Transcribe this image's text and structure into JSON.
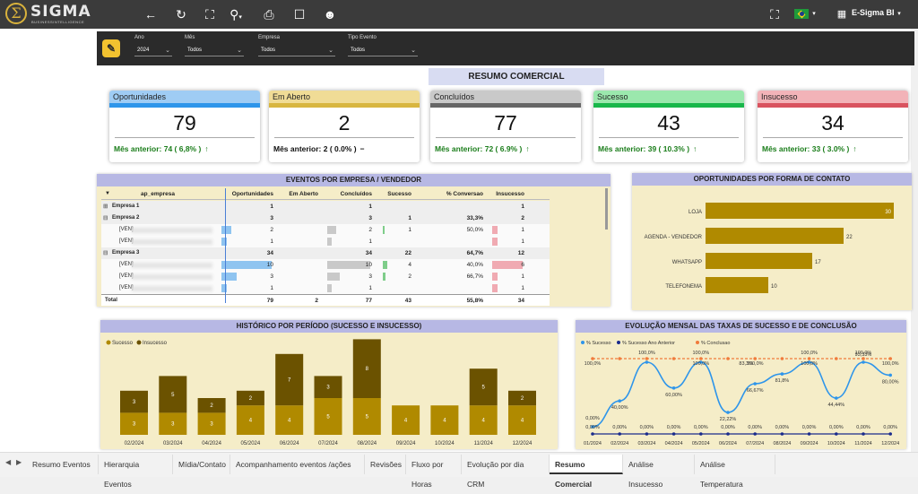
{
  "app": {
    "brand": "SIGMA",
    "brand_sub": "BUSINESSINTELLIGENCE",
    "logo_glyph": "Σ",
    "user": "E-Sigma BI"
  },
  "toolbar": {
    "icons": [
      "back-icon",
      "refresh-icon",
      "fullscreen-icon",
      "zoom-icon",
      "print-icon",
      "bookmark-icon",
      "user-help-icon"
    ],
    "right_icons": [
      "expand-icon"
    ]
  },
  "filters": [
    {
      "label": "Ano",
      "value": "2024"
    },
    {
      "label": "Mês",
      "value": "Todos"
    },
    {
      "label": "Empresa",
      "value": "Todos"
    },
    {
      "label": "Tipo Evento",
      "value": "Todos"
    }
  ],
  "resumo_title": "RESUMO COMERCIAL",
  "kpis": [
    {
      "title": "Oportunidades",
      "value": "79",
      "footer": "Mês anterior: 74 ( 6,8% )",
      "trend": "↑",
      "head": "#9fccf4",
      "bar": "#2e95ea",
      "trend_color": "#1a7d1a"
    },
    {
      "title": "Em Aberto",
      "value": "2",
      "footer": "Mês anterior: 2 ( 0.0% )",
      "trend": "−",
      "head": "#f0dc96",
      "bar": "#d8b640",
      "trend_color": "#111"
    },
    {
      "title": "Concluídos",
      "value": "77",
      "footer": "Mês anterior: 72 ( 6.9% )",
      "trend": "↑",
      "head": "#c9c9c9",
      "bar": "#666666",
      "trend_color": "#1a7d1a"
    },
    {
      "title": "Sucesso",
      "value": "43",
      "footer": "Mês anterior: 39 ( 10.3% )",
      "trend": "↑",
      "head": "#9be8ad",
      "bar": "#18b74a",
      "trend_color": "#1a7d1a"
    },
    {
      "title": "Insucesso",
      "value": "34",
      "footer": "Mês anterior: 33 ( 3.0% )",
      "trend": "↑",
      "head": "#f2b3b8",
      "bar": "#d9535f",
      "trend_color": "#1a7d1a"
    }
  ],
  "eventos": {
    "title": "EVENTOS POR EMPRESA / VENDEDOR",
    "columns": [
      "ap_empresa",
      "Oportunidades",
      "Em Aberto",
      "Concluídos",
      "Sucesso",
      "% Conversao",
      "Insucesso"
    ],
    "rows": [
      {
        "label": "Empresa 1",
        "level": 0,
        "expander": "⊞",
        "op": "1",
        "ab": "",
        "co": "1",
        "su": "",
        "pc": "",
        "in": "1",
        "bold": true,
        "op_v": 1,
        "co_v": 1,
        "su_v": 0,
        "in_v": 1
      },
      {
        "label": "Empresa 2",
        "level": 0,
        "expander": "⊟",
        "op": "3",
        "ab": "",
        "co": "3",
        "su": "1",
        "pc": "33,3%",
        "in": "2",
        "bold": true,
        "op_v": 3,
        "co_v": 3,
        "su_v": 1,
        "in_v": 2
      },
      {
        "label": "[VEN]",
        "level": 1,
        "expander": "",
        "op": "2",
        "ab": "",
        "co": "2",
        "su": "1",
        "pc": "50,0%",
        "in": "1",
        "bold": false,
        "bars": true,
        "op_v": 2,
        "co_v": 2,
        "su_v": 1,
        "in_v": 1
      },
      {
        "label": "[VEN]",
        "level": 1,
        "expander": "",
        "op": "1",
        "ab": "",
        "co": "1",
        "su": "",
        "pc": "",
        "in": "1",
        "bold": false,
        "bars": true,
        "op_v": 1,
        "co_v": 1,
        "su_v": 0,
        "in_v": 1
      },
      {
        "label": "Empresa 3",
        "level": 0,
        "expander": "⊟",
        "op": "34",
        "ab": "",
        "co": "34",
        "su": "22",
        "pc": "64,7%",
        "in": "12",
        "bold": true,
        "op_v": 34,
        "co_v": 34,
        "su_v": 22,
        "in_v": 12
      },
      {
        "label": "[VEN]",
        "level": 1,
        "expander": "",
        "op": "10",
        "ab": "",
        "co": "10",
        "su": "4",
        "pc": "40,0%",
        "in": "6",
        "bold": false,
        "bars": true,
        "op_v": 10,
        "co_v": 10,
        "su_v": 4,
        "in_v": 6
      },
      {
        "label": "[VEN]",
        "level": 1,
        "expander": "",
        "op": "3",
        "ab": "",
        "co": "3",
        "su": "2",
        "pc": "66,7%",
        "in": "1",
        "bold": false,
        "bars": true,
        "op_v": 3,
        "co_v": 3,
        "su_v": 2,
        "in_v": 1
      },
      {
        "label": "[VEN]",
        "level": 1,
        "expander": "",
        "op": "1",
        "ab": "",
        "co": "1",
        "su": "",
        "pc": "",
        "in": "1",
        "bold": false,
        "bars": true,
        "op_v": 1,
        "co_v": 1,
        "su_v": 0,
        "in_v": 1
      },
      {
        "label": "Total",
        "level": 0,
        "expander": "",
        "op": "79",
        "ab": "2",
        "co": "77",
        "su": "43",
        "pc": "55,8%",
        "in": "34",
        "bold": true,
        "total": true,
        "op_v": 79,
        "co_v": 77,
        "su_v": 43,
        "in_v": 34
      }
    ]
  },
  "panels": {
    "contato": "OPORTUNIDADES POR FORMA DE CONTATO",
    "historico": "HISTÓRICO POR PERÍODO (SUCESSO E INSUCESSO)",
    "evolucao": "EVOLUÇÃO MENSAL DAS TAXAS DE SUCESSO E DE CONCLUSÃO"
  },
  "chart_data": [
    {
      "type": "bar",
      "orientation": "horizontal",
      "categories": [
        "LOJA",
        "AGENDA - VENDEDOR",
        "WHATSAPP",
        "TELEFONEMA"
      ],
      "values": [
        30,
        22,
        17,
        10
      ],
      "color": "#b08a00"
    },
    {
      "type": "bar",
      "stacked": true,
      "categories": [
        "02/2024",
        "03/2024",
        "04/2024",
        "05/2024",
        "06/2024",
        "07/2024",
        "08/2024",
        "09/2024",
        "10/2024",
        "11/2024",
        "12/2024"
      ],
      "series": [
        {
          "name": "Sucesso",
          "values": [
            3,
            3,
            3,
            4,
            4,
            5,
            5,
            4,
            4,
            4,
            4
          ],
          "color": "#b08a00"
        },
        {
          "name": "Insucesso",
          "values": [
            3,
            5,
            2,
            2,
            7,
            3,
            8,
            0,
            0,
            5,
            2
          ],
          "color": "#6b5200"
        }
      ],
      "legend": "top-left"
    },
    {
      "type": "line",
      "categories": [
        "01/2024",
        "02/2024",
        "03/2024",
        "04/2024",
        "05/2024",
        "06/2024",
        "07/2024",
        "08/2024",
        "09/2024",
        "10/2024",
        "11/2024",
        "12/2024"
      ],
      "series": [
        {
          "name": "% Sucesso",
          "values": [
            0,
            40,
            100,
            60,
            100,
            22.22,
            66.67,
            81.82,
            100,
            44.44,
            100,
            80
          ],
          "labels": [
            "0,00%",
            "40,00%",
            "100,0%",
            "60,00%",
            "100,0%",
            "22,22%",
            "66,67%",
            "81,8%",
            "100,0%",
            "44,44%",
            "100,0%",
            "80,00%"
          ],
          "color": "#2e95ea",
          "smooth": true
        },
        {
          "name": "% Sucesso Ano Anterior",
          "values": [
            0,
            0,
            0,
            0,
            0,
            0,
            0,
            0,
            0,
            0,
            0,
            0
          ],
          "labels": [
            "0,00%",
            "0,00%",
            "0,00%",
            "0,00%",
            "0,00%",
            "0,00%",
            "0,00%",
            "0,00%",
            "0,00%",
            "0,00%",
            "0,00%",
            "0,00%"
          ],
          "color": "#1a2b8c"
        },
        {
          "name": "% Conclusao",
          "values": [
            100,
            100,
            100,
            100,
            100,
            100,
            100,
            100,
            100,
            100,
            100,
            100
          ],
          "labels": [
            "100,0%",
            "100,0%",
            "100,0%",
            "100,0%",
            "100,0%",
            "100,0%",
            "100,0%",
            "100,0%",
            "100,0%",
            "100,0%",
            "100,0%",
            "100,0%"
          ],
          "color": "#f07b3c",
          "dashed": true
        }
      ],
      "extra_labels": [
        "83,3%",
        "93,33%"
      ],
      "legend": "top-left"
    }
  ],
  "tabs": [
    "Resumo Eventos",
    "Hierarquia Eventos",
    "Mídia/Contato",
    "Acompanhamento eventos /ações",
    "Revisões",
    "Fluxo por Horas",
    "Evolução por dia CRM",
    "Resumo Comercial",
    "Análise Insucesso",
    "Análise Temperatura"
  ],
  "active_tab": "Resumo Comercial"
}
